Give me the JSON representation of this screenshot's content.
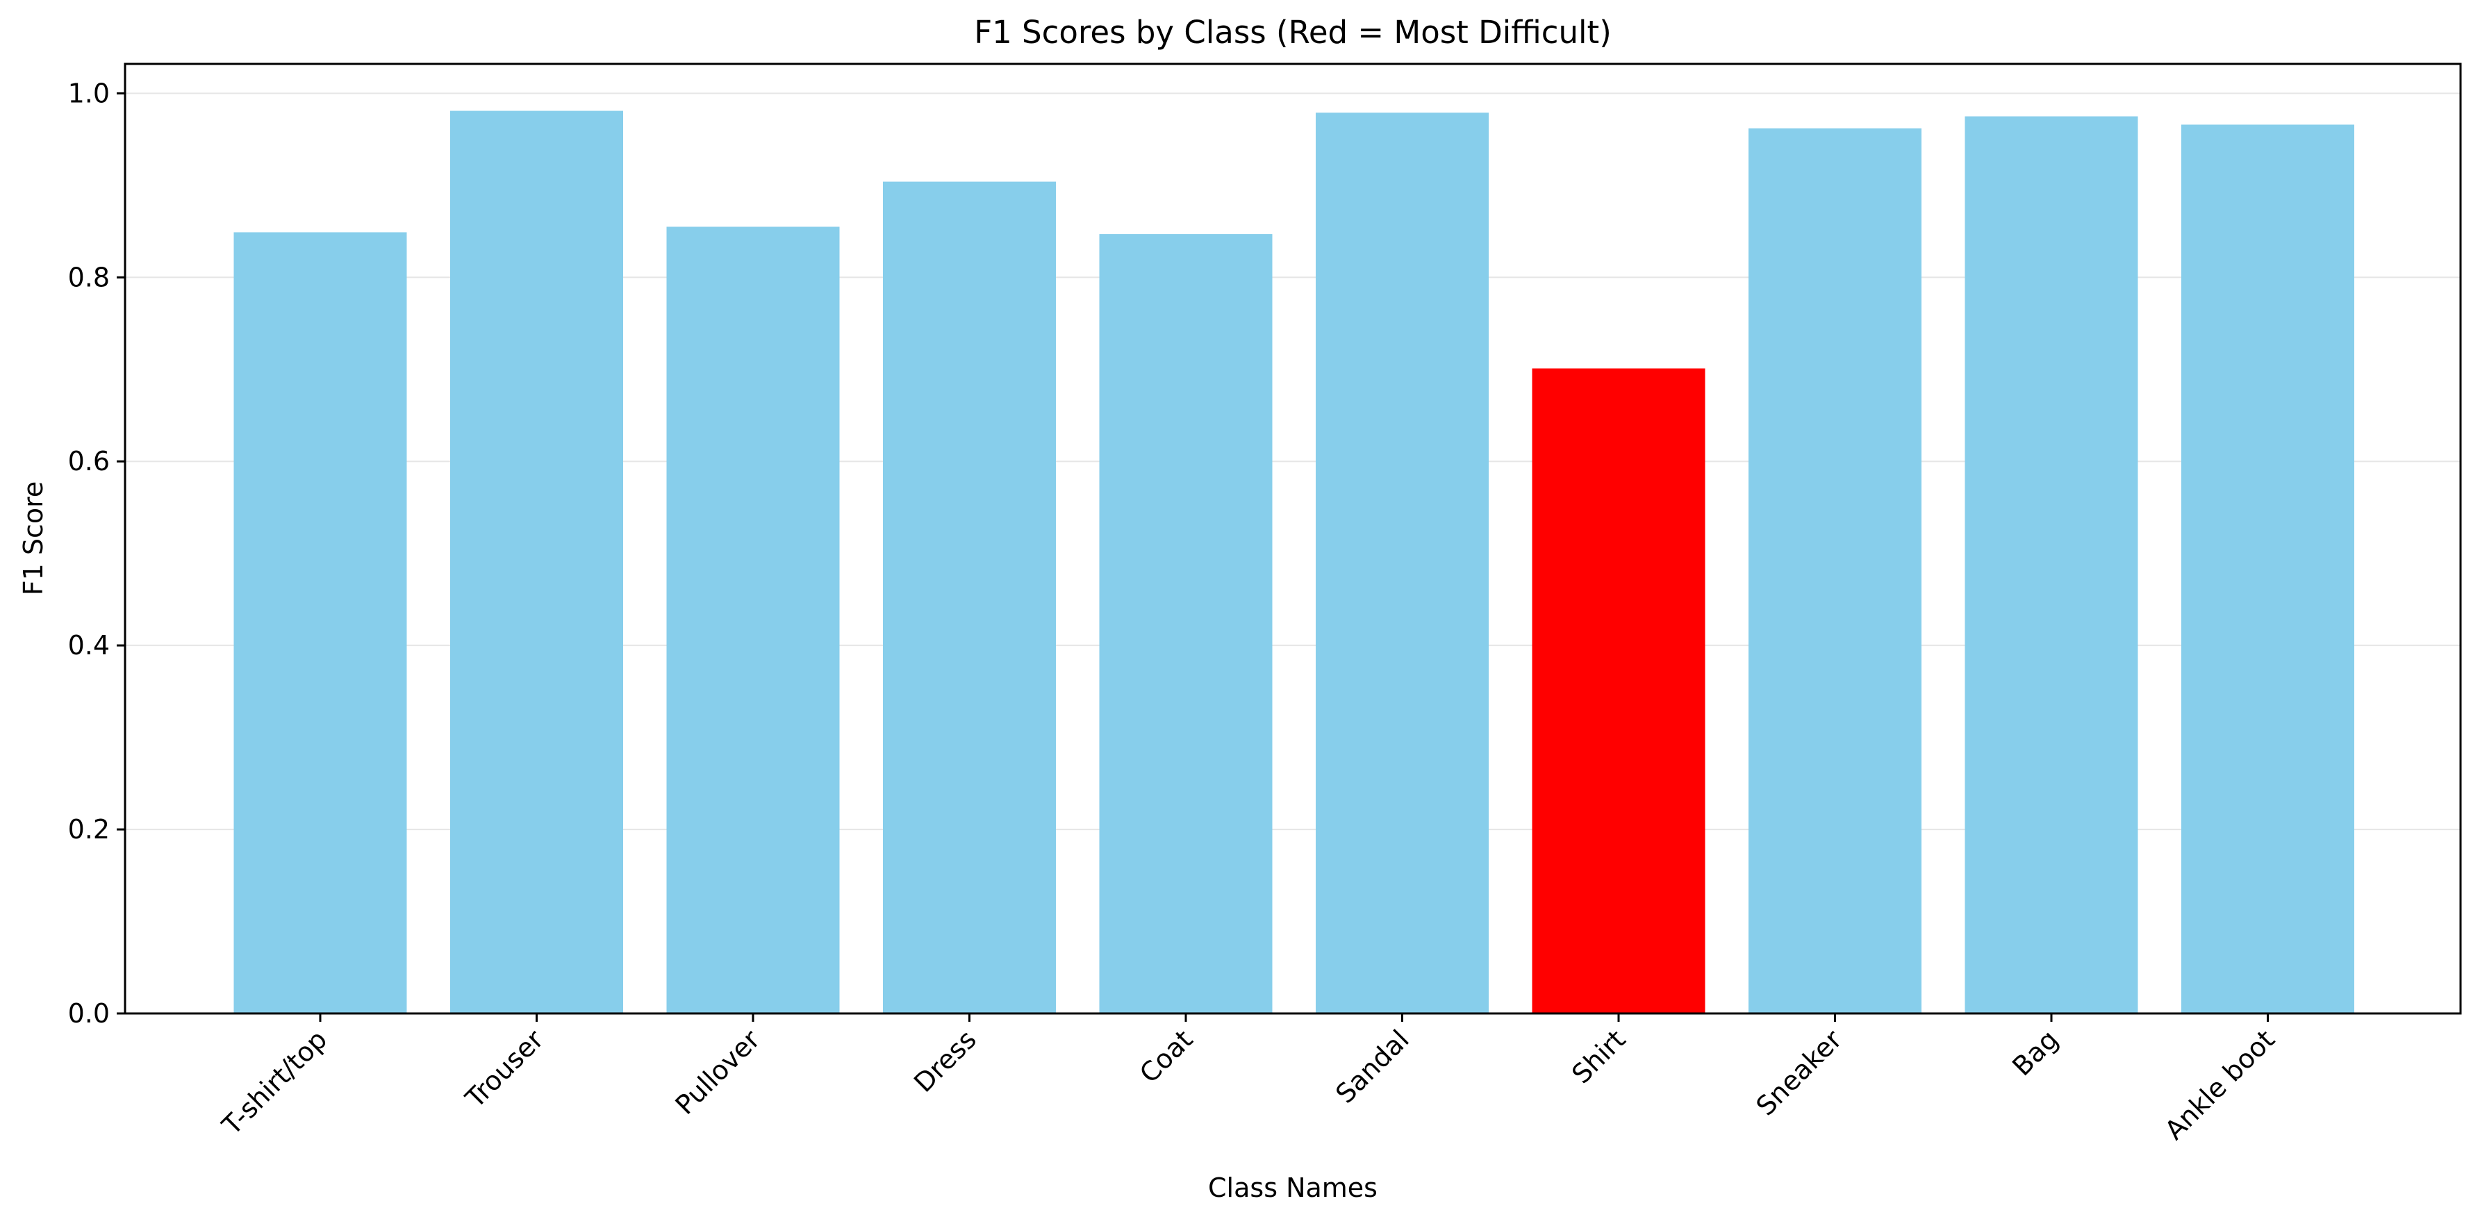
{
  "chart_data": {
    "type": "bar",
    "title": "F1 Scores by Class (Red = Most Difficult)",
    "xlabel": "Class Names",
    "ylabel": "F1 Score",
    "categories": [
      "T-shirt/top",
      "Trouser",
      "Pullover",
      "Dress",
      "Coat",
      "Sandal",
      "Shirt",
      "Sneaker",
      "Bag",
      "Ankle boot"
    ],
    "values": [
      0.849,
      0.981,
      0.855,
      0.904,
      0.847,
      0.979,
      0.701,
      0.962,
      0.975,
      0.966
    ],
    "highlight_index": 6,
    "ylim": [
      0,
      1.032
    ],
    "yticks": [
      0.0,
      0.2,
      0.4,
      0.6,
      0.8,
      1.0
    ],
    "ytick_labels": [
      "0.0",
      "0.2",
      "0.4",
      "0.6",
      "0.8",
      "1.0"
    ],
    "grid": "horizontal",
    "legend": "none",
    "colors": {
      "bar": "#87CEEB",
      "highlight": "#FF0000",
      "grid": "#e6e6e6",
      "axis": "#000000"
    }
  }
}
